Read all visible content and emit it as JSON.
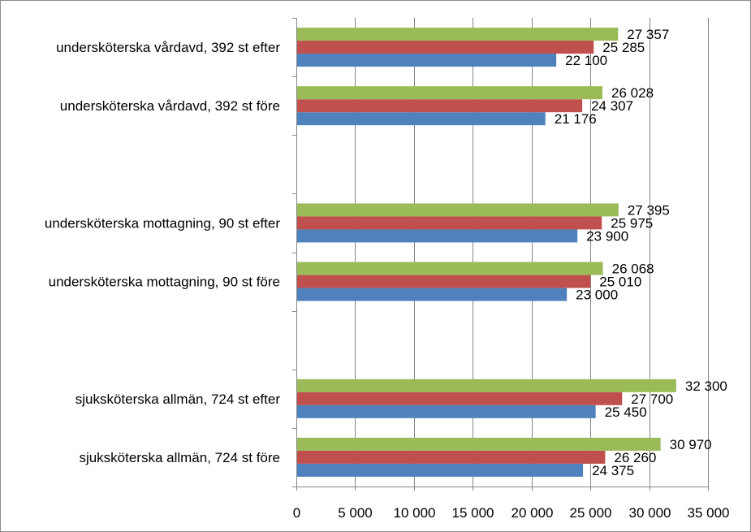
{
  "chart_data": {
    "type": "bar",
    "orientation": "horizontal",
    "categories": [
      "sjuksköterska allmän, 724 st före",
      "sjuksköterska allmän, 724 st efter",
      "",
      "undersköterska mottagning, 90 st före",
      "undersköterska mottagning, 90 st efter",
      "",
      "undersköterska vårdavd, 392 st före",
      "undersköterska vårdavd, 392 st efter"
    ],
    "series": [
      {
        "color": "#4f81bd",
        "values": [
          24375,
          25450,
          null,
          23000,
          23900,
          null,
          21176,
          22100
        ],
        "labels": [
          "24 375",
          "25 450",
          "",
          "23 000",
          "23 900",
          "",
          "21 176",
          "22 100"
        ]
      },
      {
        "color": "#c0504d",
        "values": [
          26260,
          27700,
          null,
          25010,
          25975,
          null,
          24307,
          25285
        ],
        "labels": [
          "26 260",
          "27 700",
          "",
          "25 010",
          "25 975",
          "",
          "24 307",
          "25 285"
        ]
      },
      {
        "color": "#9bbb59",
        "values": [
          30970,
          32300,
          null,
          26068,
          27395,
          null,
          26028,
          27357
        ],
        "labels": [
          "30 970",
          "32 300",
          "",
          "26 068",
          "27 395",
          "",
          "26 028",
          "27 357"
        ]
      }
    ],
    "xlim": [
      0,
      35000
    ],
    "x_ticks": [
      0,
      5000,
      10000,
      15000,
      20000,
      25000,
      30000,
      35000
    ],
    "x_tick_labels": [
      "0",
      "5 000",
      "10 000",
      "15 000",
      "20 000",
      "25 000",
      "30 000",
      "35 000"
    ],
    "grid": "vertical major gridlines",
    "legend": "none",
    "axis_color": "#868686",
    "grid_color": "#868686"
  }
}
